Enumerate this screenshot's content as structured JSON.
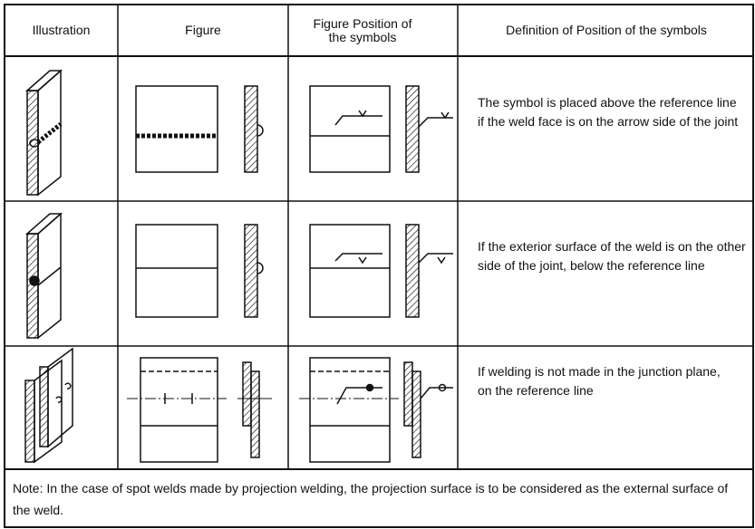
{
  "table": {
    "headers": [
      "Illustration",
      "Figure",
      "Figure Position of the symbols",
      "Definition of Position of the symbols"
    ],
    "rows": [
      {
        "definition": "The symbol is placed above the reference line if the weld face is on the arrow side of the joint"
      },
      {
        "definition": "If the exterior surface of the weld is on the other side of the joint, below the reference line"
      },
      {
        "definition": "If welding is not made in the junction plane, on the reference line"
      }
    ],
    "note": "Note: In the case of spot welds made by projection welding, the projection surface is to be considered as the external surface of the weld."
  }
}
